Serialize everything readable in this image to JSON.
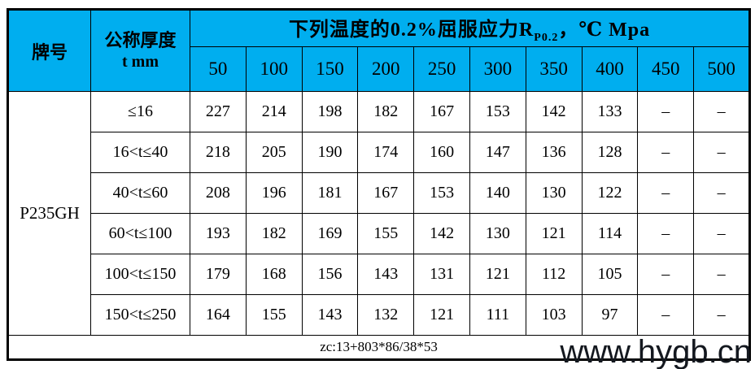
{
  "table": {
    "header": {
      "grade_label": "牌号",
      "thickness_label_line1": "公称厚度",
      "thickness_label_line2": "t mm",
      "title_main": "下列温度的0.2%屈服应力R",
      "title_sub": "P0.2",
      "title_tail": "，℃ Mpa",
      "bg_color": "#00AEEF",
      "temperatures": [
        "50",
        "100",
        "150",
        "200",
        "250",
        "300",
        "350",
        "400",
        "450",
        "500"
      ]
    },
    "grade": "P235GH",
    "rows": [
      {
        "thickness": "≤16",
        "values": [
          "227",
          "214",
          "198",
          "182",
          "167",
          "153",
          "142",
          "133",
          "–",
          "–"
        ]
      },
      {
        "thickness": "16<t≤40",
        "values": [
          "218",
          "205",
          "190",
          "174",
          "160",
          "147",
          "136",
          "128",
          "–",
          "–"
        ]
      },
      {
        "thickness": "40<t≤60",
        "values": [
          "208",
          "196",
          "181",
          "167",
          "153",
          "140",
          "130",
          "122",
          "–",
          "–"
        ]
      },
      {
        "thickness": "60<t≤100",
        "values": [
          "193",
          "182",
          "169",
          "155",
          "142",
          "130",
          "121",
          "114",
          "–",
          "–"
        ]
      },
      {
        "thickness": "100<t≤150",
        "values": [
          "179",
          "168",
          "156",
          "143",
          "131",
          "121",
          "112",
          "105",
          "–",
          "–"
        ]
      },
      {
        "thickness": "150<t≤250",
        "values": [
          "164",
          "155",
          "143",
          "132",
          "121",
          "111",
          "103",
          "97",
          "–",
          "–"
        ]
      }
    ],
    "footer": "zc:13+803*86/38*53"
  },
  "watermark": {
    "text": "www.hygb.cn",
    "color": "#14181f"
  },
  "chart_data": {
    "type": "table",
    "title": "下列温度的0.2%屈服应力RP0.2，℃ Mpa",
    "columns": [
      "牌号",
      "公称厚度 t mm",
      "50",
      "100",
      "150",
      "200",
      "250",
      "300",
      "350",
      "400",
      "450",
      "500"
    ],
    "grade": "P235GH",
    "x_categories_temperature_C": [
      50,
      100,
      150,
      200,
      250,
      300,
      350,
      400,
      450,
      500
    ],
    "series": [
      {
        "name": "≤16",
        "values": [
          227,
          214,
          198,
          182,
          167,
          153,
          142,
          133,
          null,
          null
        ]
      },
      {
        "name": "16<t≤40",
        "values": [
          218,
          205,
          190,
          174,
          160,
          147,
          136,
          128,
          null,
          null
        ]
      },
      {
        "name": "40<t≤60",
        "values": [
          208,
          196,
          181,
          167,
          153,
          140,
          130,
          122,
          null,
          null
        ]
      },
      {
        "name": "60<t≤100",
        "values": [
          193,
          182,
          169,
          155,
          142,
          130,
          121,
          114,
          null,
          null
        ]
      },
      {
        "name": "100<t≤150",
        "values": [
          179,
          168,
          156,
          143,
          131,
          121,
          112,
          105,
          null,
          null
        ]
      },
      {
        "name": "150<t≤250",
        "values": [
          164,
          155,
          143,
          132,
          121,
          111,
          103,
          97,
          null,
          null
        ]
      }
    ],
    "footer_note": "zc:13+803*86/38*53",
    "header_bg": "#00AEEF"
  }
}
